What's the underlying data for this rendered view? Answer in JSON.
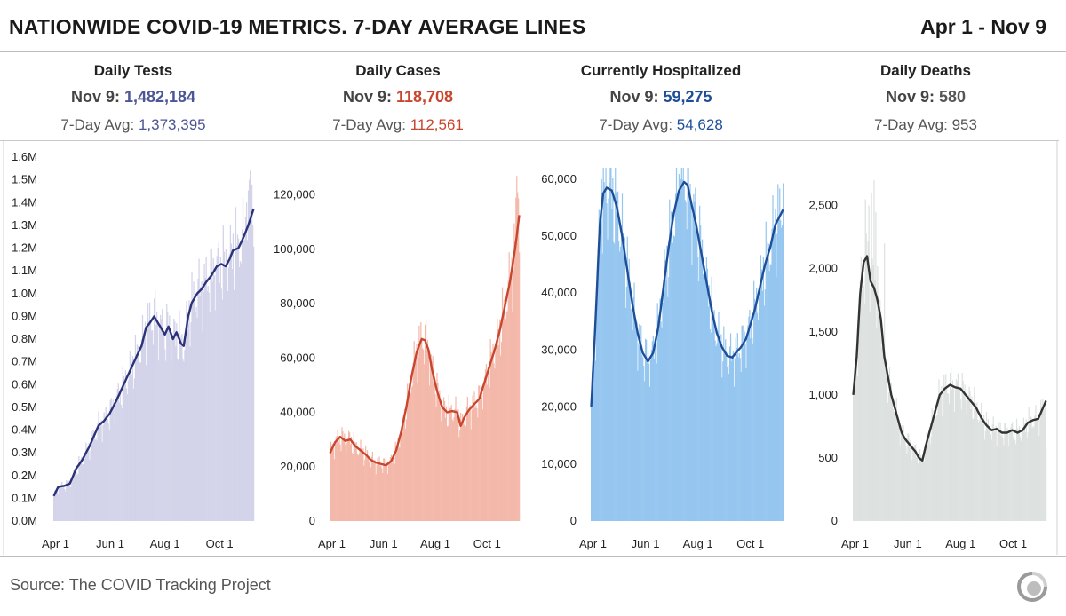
{
  "header": {
    "title": "NATIONWIDE COVID-19 METRICS. 7-DAY AVERAGE LINES",
    "date_range": "Apr 1 - Nov 9"
  },
  "footer": {
    "source": "Source: The COVID Tracking Project",
    "logo_icon": "covid-tracking-project-logo-icon"
  },
  "panels": [
    {
      "title": "Daily Tests",
      "today_label": "Nov 9: ",
      "today_value": "1,482,184",
      "avg_label": "7-Day Avg: ",
      "avg_value": "1,373,395",
      "color": "#4c5596"
    },
    {
      "title": "Daily Cases",
      "today_label": "Nov 9: ",
      "today_value": "118,708",
      "avg_label": "7-Day Avg: ",
      "avg_value": "112,561",
      "color": "#c8462e"
    },
    {
      "title": "Currently Hospitalized",
      "today_label": "Nov 9: ",
      "today_value": "59,275",
      "avg_label": "7-Day Avg: ",
      "avg_value": "54,628",
      "color": "#1f4e99"
    },
    {
      "title": "Daily Deaths",
      "today_label": "Nov 9: ",
      "today_value": "580",
      "avg_label": "7-Day Avg: ",
      "avg_value": "953",
      "color": "#555555"
    }
  ],
  "chart_data": [
    {
      "type": "bar",
      "title": "Daily Tests",
      "bar_color": "#d3d3e9",
      "line_color": "#2b3278",
      "ylim": [
        0,
        1600000
      ],
      "y_ticks": [
        0,
        100000,
        200000,
        300000,
        400000,
        500000,
        600000,
        700000,
        800000,
        900000,
        1000000,
        1100000,
        1200000,
        1300000,
        1400000,
        1500000,
        1600000
      ],
      "y_tick_labels": [
        "0.0M",
        "0.1M",
        "0.2M",
        "0.3M",
        "0.4M",
        "0.5M",
        "0.6M",
        "0.7M",
        "0.8M",
        "0.9M",
        "1.0M",
        "1.1M",
        "1.2M",
        "1.3M",
        "1.4M",
        "1.5M",
        "1.6M"
      ],
      "x_tick_days": [
        0,
        61,
        122,
        183
      ],
      "x_tick_labels": [
        "Apr 1",
        "Jun 1",
        "Aug 1",
        "Oct 1"
      ],
      "n_days": 223,
      "avg_knots": [
        [
          0,
          110000
        ],
        [
          5,
          150000
        ],
        [
          12,
          155000
        ],
        [
          18,
          165000
        ],
        [
          25,
          230000
        ],
        [
          32,
          270000
        ],
        [
          40,
          330000
        ],
        [
          50,
          420000
        ],
        [
          56,
          440000
        ],
        [
          62,
          470000
        ],
        [
          70,
          530000
        ],
        [
          78,
          600000
        ],
        [
          85,
          660000
        ],
        [
          92,
          720000
        ],
        [
          98,
          770000
        ],
        [
          103,
          850000
        ],
        [
          107,
          870000
        ],
        [
          112,
          900000
        ],
        [
          118,
          860000
        ],
        [
          124,
          820000
        ],
        [
          128,
          855000
        ],
        [
          133,
          800000
        ],
        [
          137,
          830000
        ],
        [
          142,
          780000
        ],
        [
          145,
          770000
        ],
        [
          150,
          900000
        ],
        [
          154,
          960000
        ],
        [
          160,
          1000000
        ],
        [
          165,
          1020000
        ],
        [
          170,
          1050000
        ],
        [
          176,
          1080000
        ],
        [
          182,
          1120000
        ],
        [
          187,
          1130000
        ],
        [
          192,
          1120000
        ],
        [
          196,
          1150000
        ],
        [
          200,
          1190000
        ],
        [
          206,
          1200000
        ],
        [
          212,
          1250000
        ],
        [
          217,
          1300000
        ],
        [
          223,
          1373395
        ]
      ],
      "bar_spikes": [
        [
          215,
          1400000
        ],
        [
          218,
          1500000
        ],
        [
          219,
          1540000
        ],
        [
          220,
          1450000
        ],
        [
          221,
          1480000
        ]
      ]
    },
    {
      "type": "bar",
      "title": "Daily Cases",
      "bar_color": "#f3b8aa",
      "line_color": "#c8462e",
      "ylim": [
        0,
        130000
      ],
      "y_ticks": [
        0,
        20000,
        40000,
        60000,
        80000,
        100000,
        120000
      ],
      "y_tick_labels": [
        "0",
        "20,000",
        "40,000",
        "60,000",
        "80,000",
        "100,000",
        "120,000"
      ],
      "x_tick_days": [
        0,
        61,
        122,
        183
      ],
      "x_tick_labels": [
        "Apr 1",
        "Jun 1",
        "Aug 1",
        "Oct 1"
      ],
      "n_days": 223,
      "avg_knots": [
        [
          0,
          25000
        ],
        [
          6,
          29000
        ],
        [
          12,
          31000
        ],
        [
          18,
          29500
        ],
        [
          24,
          30000
        ],
        [
          30,
          27500
        ],
        [
          36,
          26000
        ],
        [
          42,
          24500
        ],
        [
          48,
          22500
        ],
        [
          54,
          21500
        ],
        [
          60,
          21000
        ],
        [
          66,
          20500
        ],
        [
          72,
          22000
        ],
        [
          78,
          26000
        ],
        [
          84,
          33000
        ],
        [
          90,
          42000
        ],
        [
          96,
          53000
        ],
        [
          102,
          62000
        ],
        [
          108,
          67000
        ],
        [
          112,
          66500
        ],
        [
          116,
          63000
        ],
        [
          120,
          56000
        ],
        [
          126,
          48000
        ],
        [
          132,
          42000
        ],
        [
          138,
          40000
        ],
        [
          144,
          40500
        ],
        [
          150,
          40000
        ],
        [
          154,
          35000
        ],
        [
          158,
          38000
        ],
        [
          164,
          41000
        ],
        [
          170,
          43000
        ],
        [
          176,
          45000
        ],
        [
          182,
          51000
        ],
        [
          188,
          57000
        ],
        [
          194,
          63000
        ],
        [
          200,
          70000
        ],
        [
          206,
          79000
        ],
        [
          212,
          88000
        ],
        [
          218,
          100000
        ],
        [
          223,
          112561
        ]
      ],
      "bar_spikes": [
        [
          219,
          119000
        ],
        [
          220,
          127000
        ],
        [
          221,
          121000
        ],
        [
          222,
          118708
        ]
      ]
    },
    {
      "type": "bar",
      "title": "Currently Hospitalized",
      "bar_color": "#95c6ef",
      "line_color": "#1f4e99",
      "ylim": [
        0,
        62000
      ],
      "y_ticks": [
        0,
        10000,
        20000,
        30000,
        40000,
        50000,
        60000
      ],
      "y_tick_labels": [
        "0",
        "10,000",
        "20,000",
        "30,000",
        "40,000",
        "50,000",
        "60,000"
      ],
      "x_tick_days": [
        0,
        61,
        122,
        183
      ],
      "x_tick_labels": [
        "Apr 1",
        "Jun 1",
        "Aug 1",
        "Oct 1"
      ],
      "n_days": 223,
      "avg_knots": [
        [
          0,
          20000
        ],
        [
          5,
          35000
        ],
        [
          10,
          52000
        ],
        [
          14,
          57500
        ],
        [
          18,
          58500
        ],
        [
          24,
          58000
        ],
        [
          30,
          55000
        ],
        [
          36,
          50000
        ],
        [
          42,
          44000
        ],
        [
          48,
          38000
        ],
        [
          54,
          33000
        ],
        [
          60,
          29500
        ],
        [
          66,
          28000
        ],
        [
          72,
          29500
        ],
        [
          78,
          34000
        ],
        [
          84,
          41000
        ],
        [
          90,
          48000
        ],
        [
          96,
          54000
        ],
        [
          102,
          58000
        ],
        [
          108,
          59500
        ],
        [
          112,
          59000
        ],
        [
          116,
          56000
        ],
        [
          122,
          52000
        ],
        [
          128,
          47000
        ],
        [
          134,
          42000
        ],
        [
          140,
          37000
        ],
        [
          146,
          33000
        ],
        [
          152,
          30500
        ],
        [
          158,
          29000
        ],
        [
          164,
          28700
        ],
        [
          168,
          29500
        ],
        [
          174,
          30500
        ],
        [
          180,
          32000
        ],
        [
          184,
          34000
        ],
        [
          190,
          37000
        ],
        [
          196,
          41000
        ],
        [
          202,
          45000
        ],
        [
          208,
          48000
        ],
        [
          214,
          52000
        ],
        [
          223,
          54628
        ]
      ],
      "bar_spikes": [
        [
          12,
          60000
        ],
        [
          15,
          59500
        ],
        [
          104,
          60000
        ],
        [
          223,
          59275
        ]
      ]
    },
    {
      "type": "bar",
      "title": "Daily Deaths",
      "bar_color": "#dde1e0",
      "line_color": "#333333",
      "ylim": [
        0,
        2800
      ],
      "y_ticks": [
        0,
        500,
        1000,
        1500,
        2000,
        2500
      ],
      "y_tick_labels": [
        "0",
        "500",
        "1,000",
        "1,500",
        "2,000",
        "2,500"
      ],
      "x_tick_days": [
        0,
        61,
        122,
        183
      ],
      "x_tick_labels": [
        "Apr 1",
        "Jun 1",
        "Aug 1",
        "Oct 1"
      ],
      "n_days": 223,
      "avg_knots": [
        [
          0,
          1000
        ],
        [
          4,
          1300
        ],
        [
          8,
          1800
        ],
        [
          12,
          2050
        ],
        [
          16,
          2100
        ],
        [
          20,
          1900
        ],
        [
          24,
          1850
        ],
        [
          28,
          1750
        ],
        [
          32,
          1600
        ],
        [
          36,
          1300
        ],
        [
          40,
          1150
        ],
        [
          44,
          1000
        ],
        [
          48,
          900
        ],
        [
          52,
          800
        ],
        [
          56,
          700
        ],
        [
          60,
          650
        ],
        [
          66,
          600
        ],
        [
          72,
          550
        ],
        [
          76,
          500
        ],
        [
          80,
          480
        ],
        [
          84,
          600
        ],
        [
          88,
          700
        ],
        [
          92,
          800
        ],
        [
          96,
          900
        ],
        [
          100,
          1000
        ],
        [
          106,
          1050
        ],
        [
          112,
          1080
        ],
        [
          118,
          1060
        ],
        [
          124,
          1050
        ],
        [
          130,
          1000
        ],
        [
          136,
          950
        ],
        [
          142,
          900
        ],
        [
          148,
          820
        ],
        [
          154,
          760
        ],
        [
          160,
          720
        ],
        [
          166,
          730
        ],
        [
          172,
          700
        ],
        [
          178,
          700
        ],
        [
          184,
          720
        ],
        [
          190,
          700
        ],
        [
          196,
          720
        ],
        [
          202,
          780
        ],
        [
          208,
          800
        ],
        [
          214,
          810
        ],
        [
          223,
          953
        ]
      ],
      "bar_spikes": [
        [
          14,
          2550
        ],
        [
          18,
          2500
        ],
        [
          21,
          2600
        ],
        [
          24,
          2700
        ],
        [
          26,
          2450
        ],
        [
          36,
          2200
        ],
        [
          223,
          580
        ]
      ]
    }
  ]
}
